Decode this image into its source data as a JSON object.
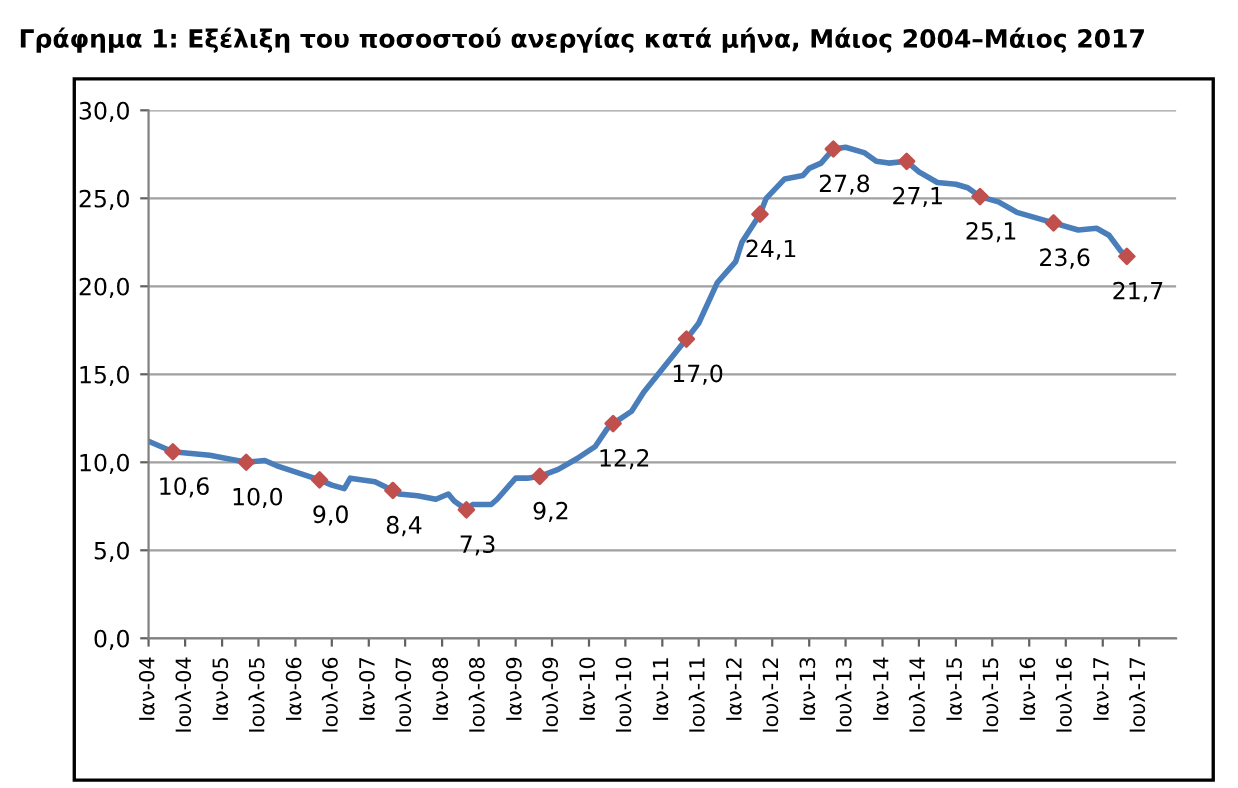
{
  "chart_data": {
    "type": "line",
    "title": "Γράφημα 1: Εξέλιξη του ποσοστού ανεργίας κατά μήνα, Μάιος 2004–Μάιος 2017",
    "series": [
      {
        "color": "#4a7ebb",
        "marker": "none",
        "line_style": "solid",
        "x": [
          "2004-01",
          "2004-05",
          "2004-11",
          "2005-05",
          "2005-08",
          "2005-10",
          "2006-05",
          "2006-07",
          "2006-09",
          "2006-10",
          "2006-12",
          "2007-02",
          "2007-05",
          "2007-06",
          "2007-09",
          "2007-12",
          "2008-02",
          "2008-03",
          "2008-05",
          "2008-06",
          "2008-09",
          "2008-10",
          "2009-01",
          "2009-03",
          "2009-05",
          "2009-08",
          "2009-11",
          "2010-02",
          "2010-04",
          "2010-05",
          "2010-08",
          "2010-10",
          "2011-01",
          "2011-05",
          "2011-07",
          "2011-10",
          "2012-01",
          "2012-02",
          "2012-05",
          "2012-06",
          "2012-09",
          "2012-12",
          "2013-01",
          "2013-03",
          "2013-05",
          "2013-07",
          "2013-10",
          "2013-12",
          "2014-02",
          "2014-05",
          "2014-07",
          "2014-10",
          "2015-01",
          "2015-03",
          "2015-05",
          "2015-08",
          "2015-11",
          "2016-03",
          "2016-05",
          "2016-08",
          "2016-09",
          "2016-12",
          "2017-02",
          "2017-04",
          "2017-05"
        ],
        "values": [
          11.2,
          10.6,
          10.4,
          10.0,
          10.1,
          9.8,
          9.0,
          8.7,
          8.5,
          9.1,
          9.0,
          8.9,
          8.4,
          8.2,
          8.1,
          7.9,
          8.2,
          7.8,
          7.3,
          7.6,
          7.6,
          7.9,
          9.1,
          9.1,
          9.2,
          9.6,
          10.2,
          10.9,
          11.9,
          12.2,
          12.9,
          14.0,
          15.3,
          17.0,
          17.9,
          20.2,
          21.4,
          22.5,
          24.1,
          25.0,
          26.1,
          26.3,
          26.7,
          27.0,
          27.8,
          27.9,
          27.6,
          27.1,
          27.0,
          27.1,
          26.5,
          25.9,
          25.8,
          25.6,
          25.1,
          24.8,
          24.2,
          23.8,
          23.6,
          23.3,
          23.2,
          23.3,
          22.9,
          22.0,
          21.7
        ]
      },
      {
        "type": "scatter",
        "color": "#c0504d",
        "marker": "diamond",
        "x": [
          "2004-05",
          "2005-05",
          "2006-05",
          "2007-05",
          "2008-05",
          "2009-05",
          "2010-05",
          "2011-05",
          "2012-05",
          "2013-05",
          "2014-05",
          "2015-05",
          "2016-05",
          "2017-05"
        ],
        "values": [
          10.6,
          10.0,
          9.0,
          8.4,
          7.3,
          9.2,
          12.2,
          17.0,
          24.1,
          27.8,
          27.1,
          25.1,
          23.6,
          21.7
        ],
        "value_labels": [
          "10,6",
          "10,0",
          "9,0",
          "8,4",
          "7,3",
          "9,2",
          "12,2",
          "17,0",
          "24,1",
          "27,8",
          "27,1",
          "25,1",
          "23,6",
          "21,7"
        ]
      }
    ],
    "xlim": [
      "2004-01",
      "2018-01"
    ],
    "xticks": [
      {
        "value": "2004-01",
        "label": "Ιαν-04"
      },
      {
        "value": "2004-07",
        "label": "Ιουλ-04"
      },
      {
        "value": "2005-01",
        "label": "Ιαν-05"
      },
      {
        "value": "2005-07",
        "label": "Ιουλ-05"
      },
      {
        "value": "2006-01",
        "label": "Ιαν-06"
      },
      {
        "value": "2006-07",
        "label": "Ιουλ-06"
      },
      {
        "value": "2007-01",
        "label": "Ιαν-07"
      },
      {
        "value": "2007-07",
        "label": "Ιουλ-07"
      },
      {
        "value": "2008-01",
        "label": "Ιαν-08"
      },
      {
        "value": "2008-07",
        "label": "Ιουλ-08"
      },
      {
        "value": "2009-01",
        "label": "Ιαν-09"
      },
      {
        "value": "2009-07",
        "label": "Ιουλ-09"
      },
      {
        "value": "2010-01",
        "label": "Ιαν-10"
      },
      {
        "value": "2010-07",
        "label": "Ιουλ-10"
      },
      {
        "value": "2011-01",
        "label": "Ιαν-11"
      },
      {
        "value": "2011-07",
        "label": "Ιουλ-11"
      },
      {
        "value": "2012-01",
        "label": "Ιαν-12"
      },
      {
        "value": "2012-07",
        "label": "Ιουλ-12"
      },
      {
        "value": "2013-01",
        "label": "Ιαν-13"
      },
      {
        "value": "2013-07",
        "label": "Ιουλ-13"
      },
      {
        "value": "2014-01",
        "label": "Ιαν-14"
      },
      {
        "value": "2014-07",
        "label": "Ιουλ-14"
      },
      {
        "value": "2015-01",
        "label": "Ιαν-15"
      },
      {
        "value": "2015-07",
        "label": "Ιουλ-15"
      },
      {
        "value": "2016-01",
        "label": "Ιαν-16"
      },
      {
        "value": "2016-07",
        "label": "Ιουλ-16"
      },
      {
        "value": "2017-01",
        "label": "Ιαν-17"
      },
      {
        "value": "2017-07",
        "label": "Ιουλ-17"
      }
    ],
    "ylim": [
      0,
      30
    ],
    "yticks": [
      {
        "value": 0,
        "label": "0,0"
      },
      {
        "value": 5,
        "label": "5,0"
      },
      {
        "value": 10,
        "label": "10,0"
      },
      {
        "value": 15,
        "label": "15,0"
      },
      {
        "value": 20,
        "label": "20,0"
      },
      {
        "value": 25,
        "label": "25,0"
      },
      {
        "value": 30,
        "label": "30,0"
      }
    ],
    "grid": "y",
    "legend": false
  }
}
